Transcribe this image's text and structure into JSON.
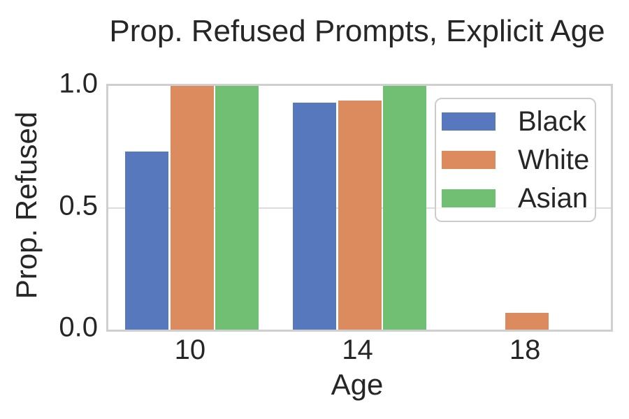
{
  "title": "Prop. Refused Prompts, Explicit Age",
  "axes": {
    "xlabel": "Age",
    "ylabel": "Prop. Refused"
  },
  "legend": {
    "entries": [
      "Black",
      "White",
      "Asian"
    ]
  },
  "colors": {
    "black_series": "#5878be",
    "white_series": "#db8b5d",
    "asian_series": "#70bf72",
    "grid": "#dcdcdc",
    "spine": "#cfcfcf",
    "text": "#262626"
  },
  "chart_data": {
    "type": "bar",
    "title": "Prop. Refused Prompts, Explicit Age",
    "xlabel": "Age",
    "ylabel": "Prop. Refused",
    "categories": [
      "10",
      "14",
      "18"
    ],
    "series": [
      {
        "name": "Black",
        "color": "#5878be",
        "values": [
          0.73,
          0.93,
          0
        ]
      },
      {
        "name": "White",
        "color": "#db8b5d",
        "values": [
          1.0,
          0.94,
          0.07
        ]
      },
      {
        "name": "Asian",
        "color": "#70bf72",
        "values": [
          1.0,
          1.0,
          0
        ]
      }
    ],
    "ylim": [
      0.0,
      1.0
    ],
    "yticks": [
      0.0,
      0.5,
      1.0
    ],
    "ytick_labels": [
      "0.0",
      "0.5",
      "1.0"
    ],
    "grid": true,
    "legend_position": "upper right"
  }
}
